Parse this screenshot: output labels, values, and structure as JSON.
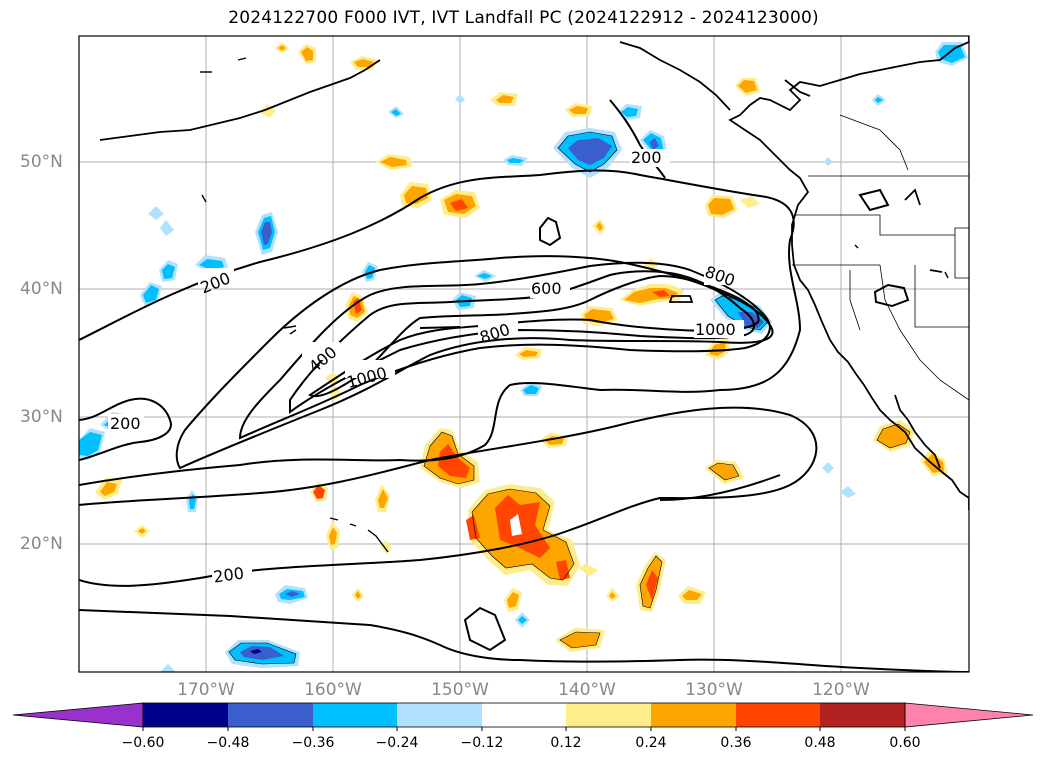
{
  "title": "2024122700 F000 IVT, IVT Landfall PC (2024122912 - 2024123000)",
  "lat_labels": [
    "50°N",
    "40°N",
    "30°N",
    "20°N"
  ],
  "lon_labels": [
    "170°W",
    "160°W",
    "150°W",
    "140°W",
    "130°W",
    "120°W"
  ],
  "contour_labels": {
    "c200_nw": "200",
    "c200_w": "200",
    "c200_s": "200",
    "c200_ne": "200",
    "c400": "400",
    "c600": "600",
    "c800_a": "800",
    "c800_b": "800",
    "c1000_a": "1000",
    "c1000_b": "1000"
  },
  "colorbar": {
    "ticks": [
      "−0.60",
      "−0.48",
      "−0.36",
      "−0.24",
      "−0.12",
      "0.12",
      "0.24",
      "0.36",
      "0.48",
      "0.60"
    ],
    "colors": {
      "below": "#9932cc",
      "c1": "#00008b",
      "c2": "#3a5fcd",
      "c3": "#00bfff",
      "c4": "#b0e2ff",
      "c5": "#ffffff",
      "c6": "#ffec8b",
      "c7": "#ffa500",
      "c8": "#ff4500",
      "c9": "#b22222",
      "above": "#ff82ab"
    }
  }
}
